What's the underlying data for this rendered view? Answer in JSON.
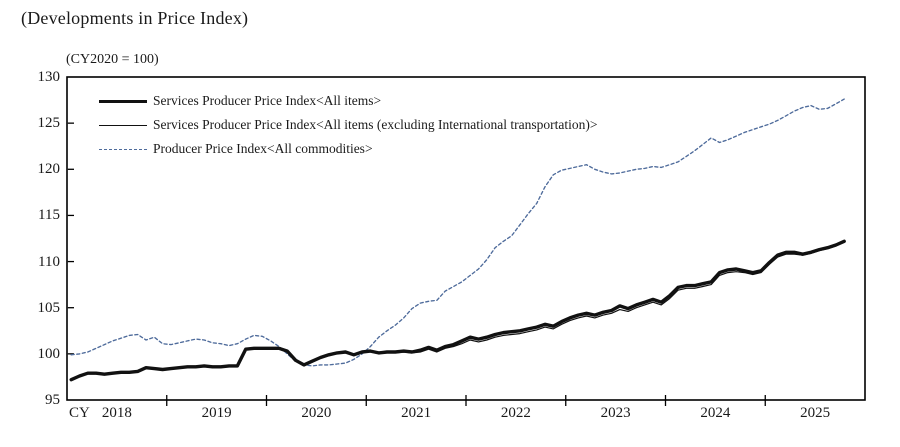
{
  "page": {
    "title": "(Developments in Price Index)",
    "unit_note": "(CY2020 = 100)"
  },
  "colors": {
    "line_black": "#111111",
    "ppi_dashed_blue": "#4e6b9b",
    "frame": "#000000"
  },
  "chart_data": {
    "type": "line",
    "title": "(Developments in Price Index)",
    "unit_note": "(CY2020 = 100)",
    "grid": false,
    "legend_position": "top-left-inside",
    "x_axis": {
      "prefix_label": "CY",
      "year_labels": [
        "2018",
        "2019",
        "2020",
        "2021",
        "2022",
        "2023",
        "2024",
        "2025"
      ],
      "frequency": "monthly",
      "start": "2018-01",
      "end": "2025-10"
    },
    "y_axis": {
      "min": 95,
      "max": 130,
      "tick_interval": 5,
      "ticks": [
        95,
        100,
        105,
        110,
        115,
        120,
        125,
        130
      ]
    },
    "series": [
      {
        "name": "Services Producer Price Index<All items>",
        "line": "thick-solid",
        "color": "#111111",
        "values": [
          97.2,
          97.6,
          97.9,
          97.9,
          97.8,
          97.9,
          98.0,
          98.0,
          98.1,
          98.5,
          98.4,
          98.3,
          98.4,
          98.5,
          98.6,
          98.6,
          98.7,
          98.6,
          98.6,
          98.7,
          98.7,
          100.5,
          100.6,
          100.6,
          100.6,
          100.6,
          100.3,
          99.3,
          98.8,
          99.2,
          99.6,
          99.9,
          100.1,
          100.2,
          99.9,
          100.2,
          100.3,
          100.1,
          100.2,
          100.2,
          100.3,
          100.2,
          100.4,
          100.7,
          100.4,
          100.8,
          101.0,
          101.4,
          101.8,
          101.6,
          101.8,
          102.1,
          102.3,
          102.4,
          102.5,
          102.7,
          102.9,
          103.2,
          103.0,
          103.5,
          103.9,
          104.2,
          104.4,
          104.2,
          104.5,
          104.7,
          105.2,
          104.9,
          105.3,
          105.6,
          105.9,
          105.6,
          106.3,
          107.2,
          107.4,
          107.4,
          107.6,
          107.8,
          108.8,
          109.1,
          109.2,
          109.0,
          108.8,
          109.0,
          109.9,
          110.7,
          111.0,
          111.0,
          110.8,
          111.0,
          111.3,
          111.5,
          111.8,
          112.2
        ]
      },
      {
        "name": "Services Producer Price Index<All items (excluding International transportation)>",
        "line": "thin-solid",
        "color": "#111111",
        "values": [
          97.2,
          97.6,
          97.9,
          97.9,
          97.8,
          97.9,
          98.0,
          98.0,
          98.1,
          98.5,
          98.4,
          98.3,
          98.4,
          98.5,
          98.6,
          98.6,
          98.7,
          98.6,
          98.6,
          98.7,
          98.7,
          100.5,
          100.6,
          100.6,
          100.6,
          100.6,
          100.3,
          99.4,
          98.9,
          99.3,
          99.6,
          99.9,
          100.1,
          100.2,
          99.9,
          100.2,
          100.3,
          100.1,
          100.1,
          100.1,
          100.2,
          100.1,
          100.2,
          100.5,
          100.2,
          100.6,
          100.8,
          101.1,
          101.5,
          101.3,
          101.5,
          101.8,
          102.0,
          102.1,
          102.2,
          102.4,
          102.6,
          102.9,
          102.7,
          103.2,
          103.6,
          103.9,
          104.1,
          103.9,
          104.2,
          104.4,
          104.8,
          104.6,
          105.0,
          105.3,
          105.6,
          105.3,
          106.0,
          106.9,
          107.1,
          107.1,
          107.3,
          107.5,
          108.5,
          108.8,
          108.9,
          108.8,
          108.6,
          108.8,
          109.7,
          110.5,
          110.8,
          110.8,
          110.7,
          110.9,
          111.2,
          111.4,
          111.7,
          112.1
        ]
      },
      {
        "name": "Producer Price Index<All commodities>",
        "line": "dashed",
        "color": "#4e6b9b",
        "values": [
          99.9,
          100.0,
          100.2,
          100.6,
          101.0,
          101.4,
          101.7,
          102.0,
          102.1,
          101.5,
          101.8,
          101.1,
          101.0,
          101.2,
          101.4,
          101.6,
          101.5,
          101.2,
          101.1,
          100.9,
          101.1,
          101.6,
          102.0,
          101.9,
          101.4,
          100.8,
          100.0,
          99.2,
          98.8,
          98.7,
          98.8,
          98.8,
          98.9,
          99.0,
          99.4,
          100.0,
          100.8,
          101.8,
          102.5,
          103.1,
          103.9,
          104.9,
          105.5,
          105.7,
          105.8,
          106.8,
          107.3,
          107.8,
          108.5,
          109.2,
          110.2,
          111.5,
          112.2,
          112.8,
          114.0,
          115.2,
          116.3,
          118.1,
          119.4,
          119.9,
          120.1,
          120.3,
          120.5,
          120.0,
          119.7,
          119.5,
          119.6,
          119.8,
          120.0,
          120.1,
          120.3,
          120.2,
          120.5,
          120.8,
          121.4,
          122.0,
          122.7,
          123.4,
          122.9,
          123.2,
          123.6,
          124.0,
          124.3,
          124.6,
          124.9,
          125.3,
          125.8,
          126.3,
          126.7,
          126.9,
          126.5,
          126.6,
          127.1,
          127.6
        ]
      }
    ]
  }
}
